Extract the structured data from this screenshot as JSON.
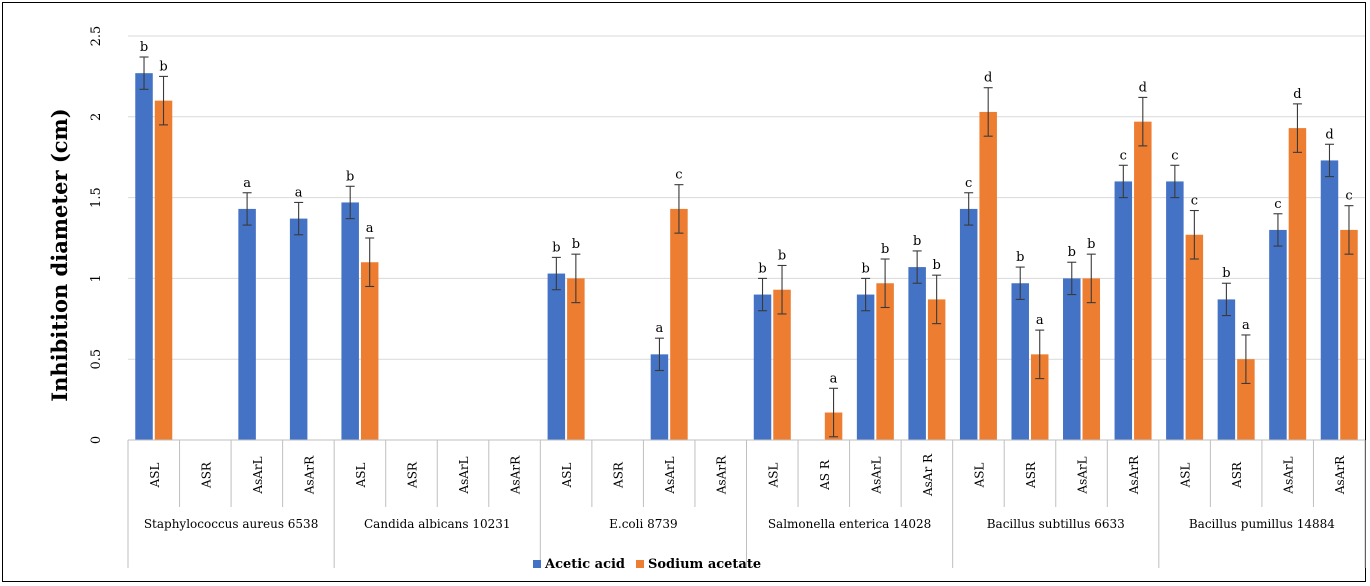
{
  "chart_data": {
    "type": "bar",
    "title": "",
    "xlabel": "",
    "ylabel": "Inhibition diameter (cm)",
    "ylim": [
      0,
      2.5
    ],
    "yticks": [
      "0",
      "0.5",
      "1",
      "1.5",
      "2",
      "2.5"
    ],
    "grid": true,
    "legend_position": "bottom",
    "groups": [
      {
        "name": "Staphylococcus aureus 6538",
        "categories": [
          "ASL",
          "ASR",
          "AsArL",
          "AsArR"
        ]
      },
      {
        "name": "Candida albicans 10231",
        "categories": [
          "ASL",
          "ASR",
          "AsArL",
          "AsArR"
        ]
      },
      {
        "name": "E.coli 8739",
        "categories": [
          "ASL",
          "ASR",
          "AsArL",
          "AsArR"
        ]
      },
      {
        "name": "Salmonella enterica 14028",
        "categories": [
          "ASL",
          "AS R",
          "AsArL",
          "AsAr R"
        ]
      },
      {
        "name": "Bacillus subtillus 6633",
        "categories": [
          "ASL",
          "ASR",
          "AsArL",
          "AsArR"
        ]
      },
      {
        "name": "Bacillus pumillus 14884",
        "categories": [
          "ASL",
          "ASR",
          "AsArL",
          "AsArR"
        ]
      }
    ],
    "series": [
      {
        "name": "Acetic acid",
        "color": "#4472C4",
        "values": [
          2.27,
          0,
          1.43,
          1.37,
          1.47,
          0,
          0,
          0,
          1.03,
          0,
          0.53,
          0,
          0.9,
          0,
          0.9,
          1.07,
          1.43,
          0.97,
          1.0,
          1.6,
          1.6,
          0.87,
          1.3,
          1.73
        ],
        "errors": [
          0.1,
          0,
          0.1,
          0.1,
          0.1,
          0,
          0,
          0,
          0.1,
          0,
          0.1,
          0,
          0.1,
          0,
          0.1,
          0.1,
          0.1,
          0.1,
          0.1,
          0.1,
          0.1,
          0.1,
          0.1,
          0.1
        ],
        "letters": [
          "b",
          "",
          "a",
          "a",
          "b",
          "",
          "",
          "",
          "b",
          "",
          "a",
          "",
          "b",
          "",
          "b",
          "b",
          "c",
          "b",
          "b",
          "c",
          "c",
          "b",
          "c",
          "d"
        ]
      },
      {
        "name": "Sodium acetate",
        "color": "#ED7D31",
        "values": [
          2.1,
          0,
          0,
          0,
          1.1,
          0,
          0,
          0,
          1.0,
          0,
          1.43,
          0,
          0.93,
          0.17,
          0.97,
          0.87,
          2.03,
          0.53,
          1.0,
          1.97,
          1.27,
          0.5,
          1.93,
          1.3
        ],
        "errors": [
          0.15,
          0,
          0,
          0,
          0.15,
          0,
          0,
          0,
          0.15,
          0,
          0.15,
          0,
          0.15,
          0.15,
          0.15,
          0.15,
          0.15,
          0.15,
          0.15,
          0.15,
          0.15,
          0.15,
          0.15,
          0.15
        ],
        "letters": [
          "b",
          "",
          "",
          "",
          "a",
          "",
          "",
          "",
          "b",
          "",
          "c",
          "",
          "b",
          "a",
          "b",
          "b",
          "d",
          "a",
          "b",
          "d",
          "c",
          "a",
          "d",
          "c"
        ]
      }
    ]
  }
}
